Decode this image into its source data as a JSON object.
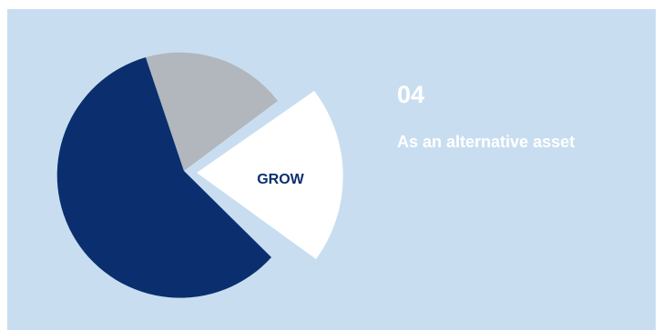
{
  "card": {
    "number": "04",
    "caption": "As an alternative asset"
  },
  "pie": {
    "highlight_label": "GROW",
    "colors": {
      "background": "#c8def0",
      "navy": "#0b2f6e",
      "gray": "#b1b7bd",
      "white": "#ffffff"
    }
  }
}
